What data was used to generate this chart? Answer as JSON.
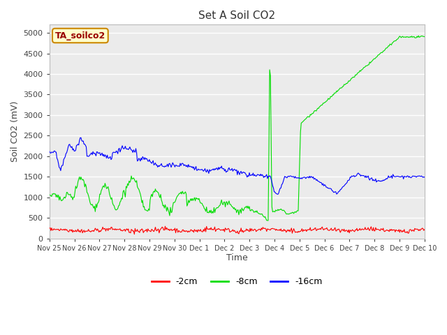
{
  "title": "Set A Soil CO2",
  "ylabel": "Soil CO2 (mV)",
  "xlabel": "Time",
  "ylim": [
    0,
    5200
  ],
  "yticks": [
    0,
    500,
    1000,
    1500,
    2000,
    2500,
    3000,
    3500,
    4000,
    4500,
    5000
  ],
  "bg_color": "#ebebeb",
  "fig_color": "#ffffff",
  "legend_label": "TA_soilco2",
  "legend_bg": "#ffffcc",
  "legend_border": "#cc8800",
  "line_colors": [
    "#ff0000",
    "#00dd00",
    "#0000ff"
  ],
  "line_labels": [
    "-2cm",
    "-8cm",
    "-16cm"
  ],
  "xtick_labels": [
    "Nov 25",
    "Nov 26",
    "Nov 27",
    "Nov 28",
    "Nov 29",
    "Nov 30",
    "Dec 1",
    "Dec 2",
    "Dec 3",
    "Dec 4",
    "Dec 5",
    "Dec 6",
    "Dec 7",
    "Dec 8",
    "Dec 9",
    "Dec 10"
  ],
  "n_points": 500
}
